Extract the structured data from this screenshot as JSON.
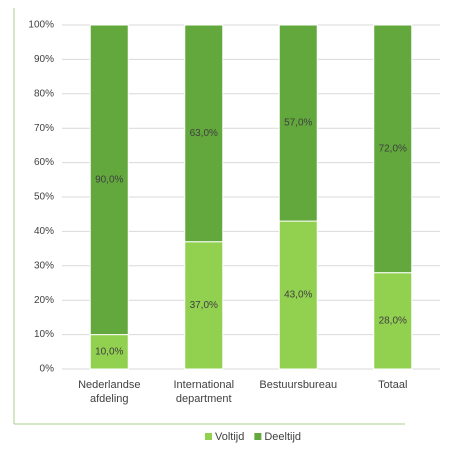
{
  "chart_data": {
    "type": "stacked_bar",
    "categories": [
      "Nederlandse afdeling",
      "International department",
      "Bestuursbureau",
      "Totaal"
    ],
    "series": [
      {
        "name": "Voltijd",
        "color": "#92d050",
        "values": [
          10,
          37,
          43,
          28
        ],
        "value_labels": [
          "10,0%",
          "37,0%",
          "43,0%",
          "28,0%"
        ]
      },
      {
        "name": "Deeltijd",
        "color": "#62a83c",
        "values": [
          90,
          63,
          57,
          72
        ],
        "value_labels": [
          "90,0%",
          "63,0%",
          "57,0%",
          "72,0%"
        ]
      }
    ],
    "ylim": [
      0,
      100
    ],
    "yticks": [
      {
        "value": 0,
        "label": "0%"
      },
      {
        "value": 10,
        "label": "10%"
      },
      {
        "value": 20,
        "label": "20%"
      },
      {
        "value": 30,
        "label": "30%"
      },
      {
        "value": 40,
        "label": "40%"
      },
      {
        "value": 50,
        "label": "50%"
      },
      {
        "value": 60,
        "label": "60%"
      },
      {
        "value": 70,
        "label": "70%"
      },
      {
        "value": 80,
        "label": "80%"
      },
      {
        "value": 90,
        "label": "90%"
      },
      {
        "value": 100,
        "label": "100%"
      }
    ],
    "grid": true,
    "legend": "bottom"
  }
}
